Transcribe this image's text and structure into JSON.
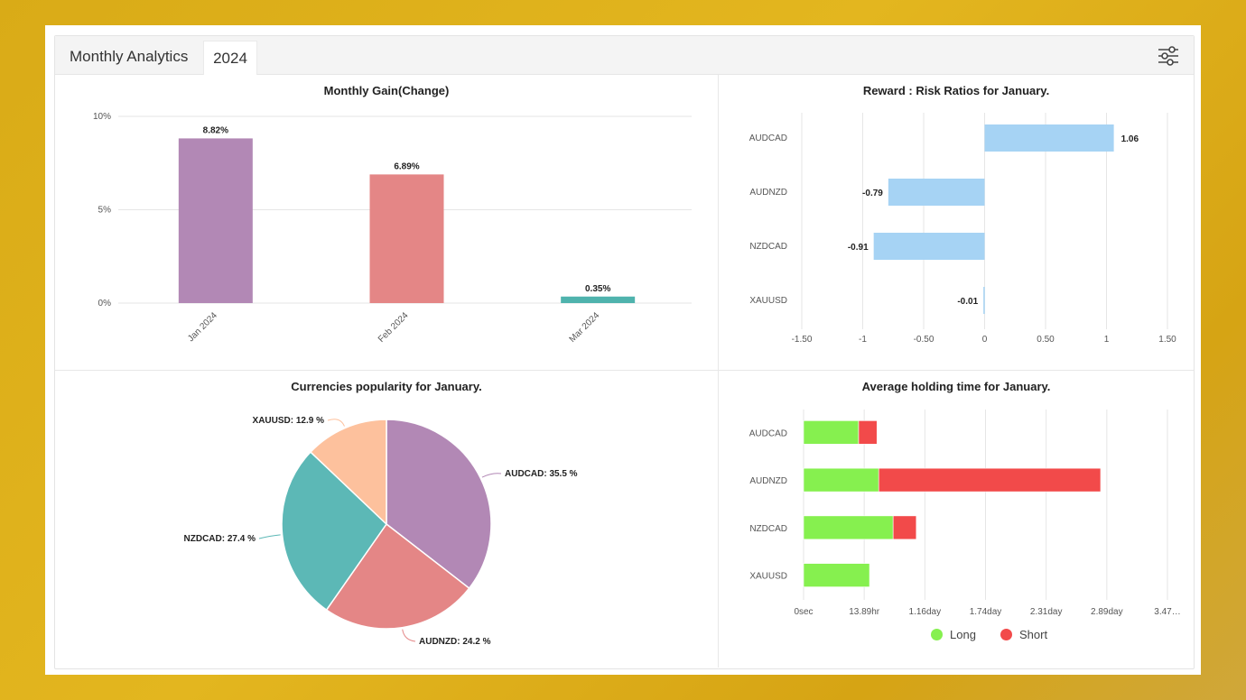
{
  "header": {
    "title": "Monthly Analytics",
    "year_tab": "2024",
    "filter_icon": "sliders-icon"
  },
  "colors": {
    "jan": "#b288b5",
    "feb": "#e48686",
    "mar": "#4fb3ad",
    "rr_bar": "#a6d3f4",
    "long": "#86f04f",
    "short": "#f24a4a",
    "pie_audcad": "#b288b5",
    "pie_audnzd": "#e48686",
    "pie_nzdcad": "#5cb8b6",
    "pie_xauusd": "#fdc19d"
  },
  "chart_data": [
    {
      "id": "monthly_gain",
      "type": "bar",
      "title": "Monthly Gain(Change)",
      "categories": [
        "Jan 2024",
        "Feb 2024",
        "Mar 2024"
      ],
      "values": [
        8.82,
        6.89,
        0.35
      ],
      "labels": [
        "8.82%",
        "6.89%",
        "0.35%"
      ],
      "yticks": [
        "0%",
        "5%",
        "10%"
      ],
      "ylim": [
        0,
        10
      ],
      "grid": true
    },
    {
      "id": "reward_risk",
      "type": "bar",
      "orientation": "horizontal",
      "title": "Reward : Risk Ratios for January.",
      "categories": [
        "AUDCAD",
        "AUDNZD",
        "NZDCAD",
        "XAUUSD"
      ],
      "values": [
        1.06,
        -0.79,
        -0.91,
        -0.01
      ],
      "labels": [
        "1.06",
        "-0.79",
        "-0.91",
        "-0.01"
      ],
      "xticks": [
        "-1.50",
        "-1",
        "-0.50",
        "0",
        "0.50",
        "1",
        "1.50"
      ],
      "xlim": [
        -1.5,
        1.5
      ],
      "grid": true
    },
    {
      "id": "currency_popularity",
      "type": "pie",
      "title": "Currencies popularity for January.",
      "slices": [
        {
          "name": "AUDCAD",
          "value": 35.5,
          "label": "AUDCAD: 35.5 %"
        },
        {
          "name": "AUDNZD",
          "value": 24.2,
          "label": "AUDNZD: 24.2 %"
        },
        {
          "name": "NZDCAD",
          "value": 27.4,
          "label": "NZDCAD: 27.4 %"
        },
        {
          "name": "XAUUSD",
          "value": 12.9,
          "label": "XAUUSD: 12.9 %"
        }
      ]
    },
    {
      "id": "holding_time",
      "type": "bar",
      "orientation": "horizontal",
      "stacked": true,
      "title": "Average holding time for January.",
      "categories": [
        "AUDCAD",
        "AUDNZD",
        "NZDCAD",
        "XAUUSD"
      ],
      "xticks": [
        "0sec",
        "13.89hr",
        "1.16day",
        "1.74day",
        "2.31day",
        "2.89day",
        "3.47…"
      ],
      "x_unit": "hours",
      "xlim": [
        0,
        83.3
      ],
      "series": [
        {
          "name": "Long",
          "values": [
            12.6,
            17.2,
            20.5,
            15.1
          ]
        },
        {
          "name": "Short",
          "values": [
            4.2,
            50.8,
            5.3,
            0
          ]
        }
      ],
      "legend": "bottom",
      "grid": true
    }
  ]
}
